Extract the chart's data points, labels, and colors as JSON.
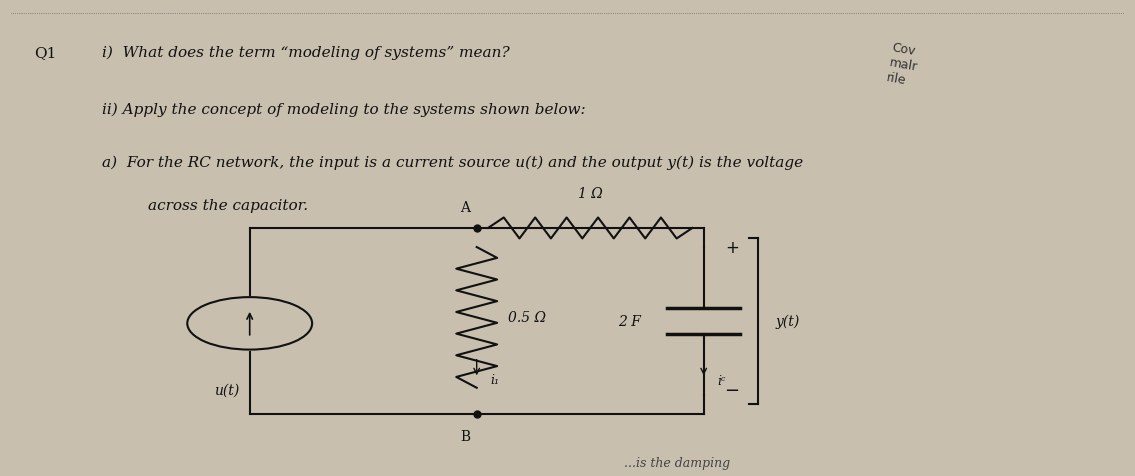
{
  "bg_color": "#c8bfaf",
  "text_color": "#111111",
  "q1_label": "Q1",
  "line1": "i)  What does the term “modeling of systems” mean?",
  "line2": "ii) Apply the concept of modeling to the systems shown below:",
  "line3": "a)  For the RC network, the input is a current source u(t) and the output y(t) is the voltage",
  "line4": "    across the capacitor.",
  "r1_label": "1 Ω",
  "r2_label": "0.5 Ω",
  "c_label": "2 F",
  "y_label": "y(t)",
  "u_label": "u(t)",
  "i1_label": "i₁",
  "ic_label": "iᶜ",
  "node_A_label": "A",
  "node_B_label": "B",
  "plus_label": "+",
  "minus_label": "−",
  "bottom_text": "...is the damping"
}
